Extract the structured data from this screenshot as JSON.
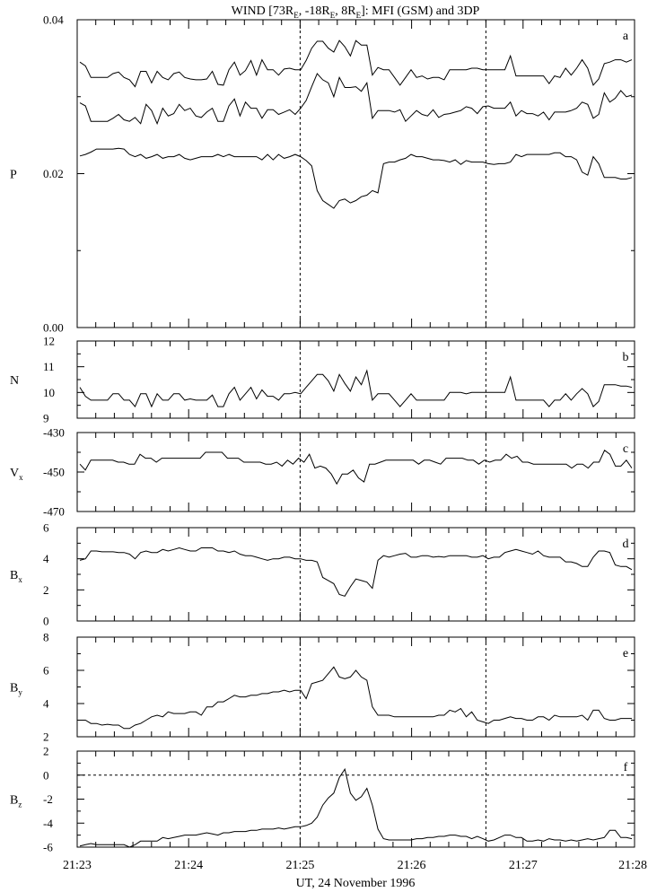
{
  "title": {
    "main": "WIND [73R",
    "sub1": "E",
    "t2": ", -18R",
    "sub2": "E",
    "t3": ", 8R",
    "sub3": "E",
    "t4": "]: MFI (GSM) and 3DP"
  },
  "xlabel": "UT, 24 November 1996",
  "chart_data": {
    "type": "line",
    "title": "WIND [73RE, -18RE, 8RE]: MFI (GSM) and 3DP",
    "xlabel": "UT, 24 November 1996",
    "x_ticks": [
      "21:23",
      "21:24",
      "21:25",
      "21:26",
      "21:27",
      "21:28"
    ],
    "xlim": [
      "21:23",
      "21:28"
    ],
    "vertical_markers": [
      "21:25",
      "21:26:40"
    ],
    "panels": [
      {
        "letter": "a",
        "ylabel": "P",
        "ylabel_sub": "",
        "ylim": [
          0.0,
          0.04
        ],
        "yticks": [
          0.0,
          0.02,
          0.04
        ],
        "ytick_labels": [
          "0.00",
          "0.02",
          "0.04"
        ],
        "series": [
          {
            "values": [
              0.0345,
              0.034,
              0.0325,
              0.0325,
              0.0325,
              0.0325,
              0.033,
              0.0332,
              0.0325,
              0.0322,
              0.0313,
              0.0333,
              0.0333,
              0.0318,
              0.0333,
              0.0325,
              0.0322,
              0.033,
              0.0332,
              0.0325,
              0.0323,
              0.0322,
              0.0322,
              0.0323,
              0.0333,
              0.0316,
              0.0315,
              0.0335,
              0.0345,
              0.0328,
              0.0334,
              0.0347,
              0.0328,
              0.0348,
              0.0335,
              0.0335,
              0.0328,
              0.0336,
              0.0337,
              0.0335,
              0.0335,
              0.0347,
              0.0363,
              0.0372,
              0.0372,
              0.0363,
              0.0358,
              0.0373,
              0.0365,
              0.0353,
              0.0373,
              0.0367,
              0.0367,
              0.0328,
              0.0338,
              0.0335,
              0.0335,
              0.0325,
              0.0315,
              0.0325,
              0.0335,
              0.0325,
              0.0327,
              0.0323,
              0.0325,
              0.0325,
              0.0322,
              0.0335,
              0.0335,
              0.0335,
              0.0335,
              0.0337,
              0.0337,
              0.0335,
              0.0335,
              0.0335,
              0.0335,
              0.0335,
              0.0353,
              0.0327,
              0.0327,
              0.0327,
              0.0327,
              0.0327,
              0.0327,
              0.0317,
              0.0327,
              0.0325,
              0.0337,
              0.0328,
              0.0337,
              0.0348,
              0.0337,
              0.0315,
              0.0323,
              0.0343,
              0.0345,
              0.0348,
              0.0348,
              0.0345,
              0.0348
            ]
          },
          {
            "values": [
              0.0292,
              0.0288,
              0.0268,
              0.0268,
              0.0268,
              0.0268,
              0.0272,
              0.0277,
              0.027,
              0.0268,
              0.0273,
              0.0265,
              0.029,
              0.0282,
              0.0265,
              0.0285,
              0.0275,
              0.0278,
              0.029,
              0.0282,
              0.0285,
              0.0275,
              0.0273,
              0.028,
              0.0285,
              0.0268,
              0.0268,
              0.0288,
              0.0297,
              0.0275,
              0.0293,
              0.0285,
              0.0285,
              0.0272,
              0.0283,
              0.0283,
              0.0277,
              0.028,
              0.0283,
              0.0277,
              0.0285,
              0.0295,
              0.0313,
              0.033,
              0.0322,
              0.0318,
              0.03,
              0.0325,
              0.0312,
              0.0312,
              0.0313,
              0.0307,
              0.0318,
              0.0272,
              0.0282,
              0.0282,
              0.0282,
              0.028,
              0.0283,
              0.0268,
              0.0275,
              0.0282,
              0.0277,
              0.0275,
              0.0283,
              0.0273,
              0.0277,
              0.0278,
              0.028,
              0.0282,
              0.0287,
              0.0285,
              0.0278,
              0.0287,
              0.0288,
              0.0285,
              0.0285,
              0.0285,
              0.0293,
              0.0275,
              0.0282,
              0.0278,
              0.0278,
              0.0275,
              0.028,
              0.027,
              0.028,
              0.028,
              0.028,
              0.0282,
              0.0285,
              0.0293,
              0.029,
              0.0272,
              0.0277,
              0.0305,
              0.0293,
              0.0298,
              0.0308,
              0.03,
              0.0302
            ]
          },
          {
            "values": [
              0.0223,
              0.0225,
              0.0228,
              0.0232,
              0.0232,
              0.0232,
              0.0232,
              0.0233,
              0.0232,
              0.0225,
              0.0222,
              0.0225,
              0.022,
              0.0222,
              0.0225,
              0.022,
              0.0222,
              0.0222,
              0.0225,
              0.022,
              0.0218,
              0.022,
              0.0222,
              0.0222,
              0.0222,
              0.0225,
              0.0222,
              0.0225,
              0.0222,
              0.0222,
              0.0222,
              0.0222,
              0.0222,
              0.0218,
              0.0225,
              0.0218,
              0.0225,
              0.022,
              0.0222,
              0.0225,
              0.0222,
              0.0217,
              0.021,
              0.0178,
              0.0165,
              0.016,
              0.0155,
              0.0165,
              0.0167,
              0.0162,
              0.0165,
              0.017,
              0.0172,
              0.0178,
              0.0175,
              0.0213,
              0.0215,
              0.0215,
              0.0218,
              0.022,
              0.0225,
              0.0222,
              0.0222,
              0.022,
              0.0218,
              0.0218,
              0.0217,
              0.0215,
              0.0218,
              0.0212,
              0.0217,
              0.0215,
              0.0215,
              0.0215,
              0.0213,
              0.0212,
              0.0213,
              0.0213,
              0.0215,
              0.0225,
              0.0222,
              0.0225,
              0.0225,
              0.0225,
              0.0225,
              0.0225,
              0.0227,
              0.0227,
              0.0222,
              0.0222,
              0.0218,
              0.0202,
              0.0198,
              0.0222,
              0.0213,
              0.0195,
              0.0195,
              0.0195,
              0.0193,
              0.0193,
              0.0195
            ]
          }
        ]
      },
      {
        "letter": "b",
        "ylabel": "N",
        "ylabel_sub": "",
        "ylim": [
          9,
          12
        ],
        "yticks": [
          9,
          10,
          11,
          12
        ],
        "ytick_labels": [
          "9",
          "10",
          "11",
          "12"
        ],
        "series": [
          {
            "values": [
              10.2,
              9.85,
              9.7,
              9.7,
              9.7,
              9.7,
              9.95,
              9.95,
              9.7,
              9.7,
              9.45,
              9.95,
              9.95,
              9.45,
              9.95,
              9.7,
              9.7,
              9.95,
              9.95,
              9.7,
              9.75,
              9.7,
              9.7,
              9.7,
              9.9,
              9.45,
              9.45,
              9.95,
              10.2,
              9.7,
              9.95,
              10.2,
              9.75,
              10.1,
              9.85,
              9.85,
              9.7,
              9.95,
              9.95,
              10.0,
              9.95,
              10.2,
              10.45,
              10.7,
              10.7,
              10.45,
              10.05,
              10.7,
              10.35,
              10.05,
              10.6,
              10.3,
              10.85,
              9.7,
              9.95,
              9.95,
              9.95,
              9.7,
              9.45,
              9.7,
              9.95,
              9.7,
              9.7,
              9.7,
              9.7,
              9.7,
              9.7,
              10.0,
              10.0,
              10.0,
              9.95,
              10.0,
              10.0,
              10.0,
              10.0,
              10.0,
              10.0,
              10.0,
              10.6,
              9.7,
              9.7,
              9.7,
              9.7,
              9.7,
              9.7,
              9.45,
              9.7,
              9.7,
              9.95,
              9.7,
              9.95,
              10.15,
              9.95,
              9.45,
              9.65,
              10.3,
              10.3,
              10.3,
              10.25,
              10.25,
              10.2
            ]
          }
        ]
      },
      {
        "letter": "c",
        "ylabel": "V",
        "ylabel_sub": "x",
        "ylim": [
          -470,
          -430
        ],
        "yticks": [
          -470,
          -450,
          -430
        ],
        "ytick_labels": [
          "-470",
          "-450",
          "-430"
        ],
        "series": [
          {
            "values": [
              -446,
              -449,
              -444,
              -444,
              -444,
              -444,
              -444,
              -445,
              -445,
              -446,
              -446,
              -441,
              -443,
              -443,
              -445,
              -443,
              -443,
              -443,
              -443,
              -443,
              -443,
              -443,
              -443,
              -440,
              -440,
              -440,
              -440,
              -443,
              -443,
              -443,
              -445,
              -445,
              -445,
              -445,
              -446,
              -446,
              -445,
              -447,
              -444,
              -446,
              -443,
              -445,
              -441,
              -448,
              -447,
              -448,
              -451,
              -456,
              -451,
              -451,
              -449,
              -453,
              -455,
              -446,
              -446,
              -445,
              -444,
              -444,
              -444,
              -444,
              -444,
              -444,
              -446,
              -444,
              -444,
              -445,
              -446,
              -443,
              -443,
              -443,
              -443,
              -444,
              -444,
              -446,
              -444,
              -445,
              -444,
              -444,
              -441,
              -443,
              -442,
              -445,
              -445,
              -446,
              -446,
              -446,
              -446,
              -446,
              -446,
              -446,
              -448,
              -446,
              -446,
              -448,
              -445,
              -445,
              -439,
              -441,
              -447,
              -447,
              -444,
              -448
            ]
          }
        ]
      },
      {
        "letter": "d",
        "ylabel": "B",
        "ylabel_sub": "x",
        "ylim": [
          0,
          6
        ],
        "yticks": [
          0,
          2,
          4,
          6
        ],
        "ytick_labels": [
          "0",
          "2",
          "4",
          "6"
        ],
        "series": [
          {
            "values": [
              3.9,
              4.0,
              4.5,
              4.5,
              4.45,
              4.45,
              4.45,
              4.4,
              4.4,
              4.3,
              4.0,
              4.4,
              4.5,
              4.4,
              4.4,
              4.6,
              4.5,
              4.6,
              4.7,
              4.6,
              4.5,
              4.5,
              4.7,
              4.7,
              4.7,
              4.5,
              4.5,
              4.4,
              4.5,
              4.3,
              4.2,
              4.2,
              4.1,
              4.0,
              3.9,
              4.0,
              4.0,
              4.1,
              4.1,
              4.0,
              4.0,
              3.9,
              3.9,
              3.8,
              2.8,
              2.6,
              2.4,
              1.7,
              1.6,
              2.2,
              2.7,
              2.6,
              2.5,
              2.1,
              3.9,
              4.2,
              4.1,
              4.2,
              4.3,
              4.35,
              4.1,
              4.1,
              4.2,
              4.2,
              4.1,
              4.15,
              4.1,
              4.2,
              4.2,
              4.2,
              4.2,
              4.1,
              4.1,
              4.2,
              4.0,
              4.1,
              4.1,
              4.4,
              4.5,
              4.6,
              4.5,
              4.4,
              4.3,
              4.5,
              4.2,
              4.1,
              4.1,
              4.1,
              3.8,
              3.8,
              3.7,
              3.5,
              3.5,
              4.1,
              4.5,
              4.5,
              4.4,
              3.6,
              3.5,
              3.5,
              3.3
            ]
          }
        ]
      },
      {
        "letter": "e",
        "ylabel": "B",
        "ylabel_sub": "y",
        "ylim": [
          2,
          8
        ],
        "yticks": [
          2,
          4,
          6,
          8
        ],
        "ytick_labels": [
          "2",
          "4",
          "6",
          "8"
        ],
        "series": [
          {
            "values": [
              3.0,
              3.0,
              2.8,
              2.8,
              2.7,
              2.75,
              2.7,
              2.7,
              2.5,
              2.5,
              2.7,
              2.8,
              3.0,
              3.2,
              3.3,
              3.2,
              3.5,
              3.4,
              3.4,
              3.4,
              3.5,
              3.5,
              3.3,
              3.8,
              3.8,
              4.1,
              4.1,
              4.3,
              4.5,
              4.4,
              4.4,
              4.5,
              4.5,
              4.6,
              4.6,
              4.7,
              4.7,
              4.8,
              4.7,
              4.8,
              4.8,
              4.3,
              5.2,
              5.3,
              5.4,
              5.8,
              6.2,
              5.6,
              5.5,
              5.6,
              6.0,
              5.6,
              5.4,
              3.8,
              3.3,
              3.3,
              3.3,
              3.2,
              3.2,
              3.2,
              3.2,
              3.2,
              3.2,
              3.2,
              3.2,
              3.3,
              3.3,
              3.6,
              3.5,
              3.7,
              3.2,
              3.5,
              3.0,
              2.9,
              2.8,
              3.0,
              3.0,
              3.1,
              3.2,
              3.1,
              3.1,
              3.0,
              3.0,
              3.2,
              3.2,
              3.0,
              3.3,
              3.2,
              3.2,
              3.2,
              3.2,
              3.3,
              3.0,
              3.6,
              3.6,
              3.1,
              3.0,
              3.0,
              3.1,
              3.1,
              3.1
            ]
          }
        ]
      },
      {
        "letter": "f",
        "ylabel": "B",
        "ylabel_sub": "z",
        "ylim": [
          -6,
          2
        ],
        "yticks": [
          -6,
          -4,
          -2,
          0,
          2
        ],
        "ytick_labels": [
          "-6",
          "-4",
          "-2",
          "0",
          "2"
        ],
        "zero_line": 0,
        "series": [
          {
            "values": [
              -5.9,
              -5.8,
              -5.7,
              -5.8,
              -5.8,
              -5.8,
              -5.8,
              -5.8,
              -5.8,
              -6.0,
              -5.8,
              -5.5,
              -5.5,
              -5.5,
              -5.5,
              -5.2,
              -5.3,
              -5.2,
              -5.1,
              -5.0,
              -5.0,
              -5.0,
              -4.9,
              -4.8,
              -4.9,
              -5.0,
              -4.8,
              -4.8,
              -4.7,
              -4.7,
              -4.7,
              -4.6,
              -4.6,
              -4.5,
              -4.5,
              -4.5,
              -4.4,
              -4.5,
              -4.4,
              -4.3,
              -4.3,
              -4.2,
              -4.0,
              -3.5,
              -2.5,
              -1.9,
              -1.5,
              -0.2,
              0.5,
              -1.5,
              -2.1,
              -1.8,
              -1.1,
              -2.5,
              -4.5,
              -5.3,
              -5.4,
              -5.4,
              -5.4,
              -5.4,
              -5.4,
              -5.3,
              -5.3,
              -5.2,
              -5.2,
              -5.1,
              -5.1,
              -5.0,
              -5.0,
              -5.1,
              -5.1,
              -5.3,
              -5.1,
              -5.3,
              -5.5,
              -5.4,
              -5.2,
              -5.0,
              -5.0,
              -5.2,
              -5.2,
              -5.5,
              -5.5,
              -5.4,
              -5.5,
              -5.3,
              -5.4,
              -5.4,
              -5.5,
              -5.4,
              -5.5,
              -5.4,
              -5.3,
              -5.4,
              -5.3,
              -5.2,
              -4.6,
              -4.6,
              -5.2,
              -5.2,
              -5.3
            ]
          }
        ]
      }
    ]
  }
}
